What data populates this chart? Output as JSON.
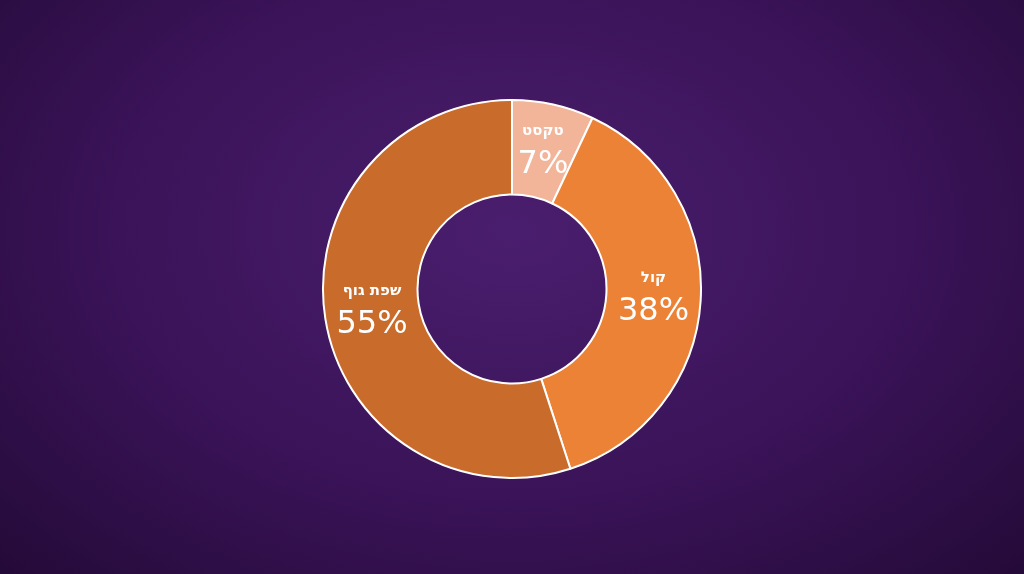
{
  "chart_data": {
    "type": "donut",
    "categories": [
      "טקסט",
      "קול",
      "שפת גוף"
    ],
    "values": [
      7,
      38,
      55
    ],
    "colors": [
      "#f2b59a",
      "#ec8236",
      "#c96b2a"
    ],
    "value_labels": [
      "7%",
      "38%",
      "55%"
    ],
    "legend": false
  }
}
